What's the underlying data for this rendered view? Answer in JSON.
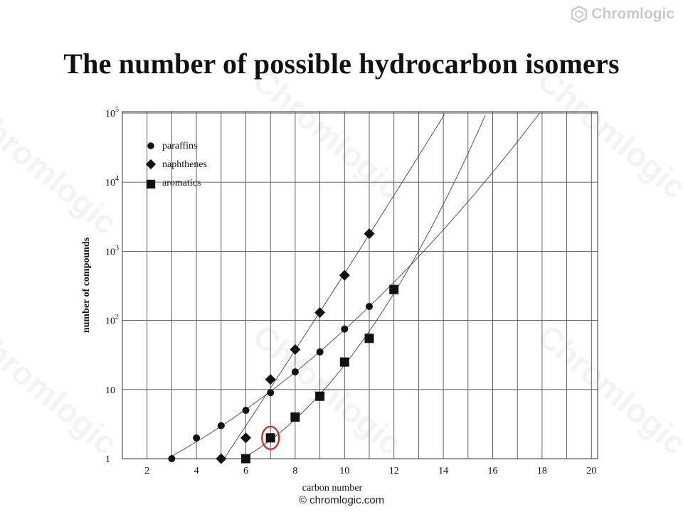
{
  "brand": {
    "name": "Chromlogic",
    "icon": "hexagon-logo-icon"
  },
  "slide": {
    "title": "The number of possible hydrocarbon isomers",
    "credit": "© chromlogic.com"
  },
  "watermark": "Chromlogic",
  "chart_data": {
    "type": "scatter",
    "xlabel": "carbon number",
    "ylabel": "number of compounds",
    "x_ticks": [
      2,
      4,
      6,
      8,
      10,
      12,
      14,
      16,
      18,
      20
    ],
    "y_scale": "log",
    "y_ticks": [
      {
        "value": 1,
        "label": "1",
        "sup": ""
      },
      {
        "value": 10,
        "label": "10",
        "sup": ""
      },
      {
        "value": 100,
        "label": "10",
        "sup": "2"
      },
      {
        "value": 1000,
        "label": "10",
        "sup": "3"
      },
      {
        "value": 10000,
        "label": "10",
        "sup": "4"
      },
      {
        "value": 100000,
        "label": "10",
        "sup": "5"
      }
    ],
    "xlim": [
      1,
      20
    ],
    "ylim": [
      1,
      100000
    ],
    "grid": true,
    "legend_position": "top-left",
    "series": [
      {
        "name": "paraffins",
        "marker": "circle",
        "x": [
          3,
          4,
          5,
          6,
          7,
          8,
          9,
          10,
          11
        ],
        "y": [
          1,
          2,
          3,
          5,
          9,
          18,
          35,
          75,
          159
        ]
      },
      {
        "name": "naphthenes",
        "marker": "diamond",
        "x": [
          5,
          6,
          7,
          8,
          9,
          10,
          11
        ],
        "y": [
          1,
          2,
          14,
          38,
          130,
          450,
          1800
        ]
      },
      {
        "name": "aromatics",
        "marker": "square",
        "x": [
          6,
          7,
          8,
          9,
          10,
          11,
          12
        ],
        "y": [
          1,
          2,
          4,
          8,
          25,
          55,
          280
        ]
      }
    ],
    "highlight": {
      "series": "aromatics",
      "x": 7,
      "y": 2,
      "color": "#e02020"
    }
  }
}
